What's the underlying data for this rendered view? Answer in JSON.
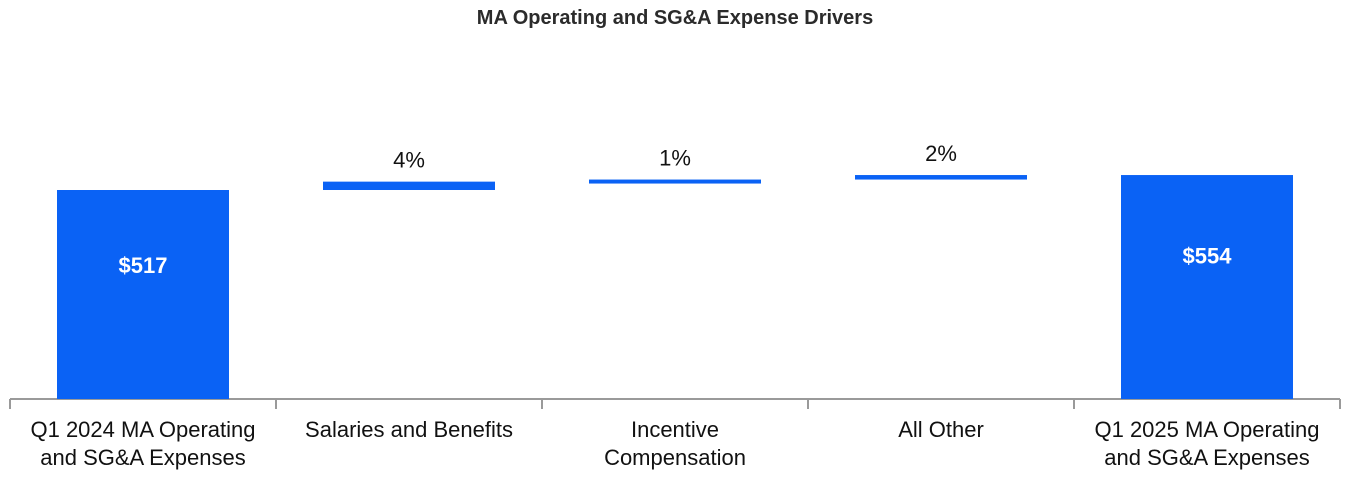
{
  "chart_data": {
    "type": "waterfall",
    "title": "MA Operating and SG&A Expense Drivers",
    "categories": [
      "Q1 2024 MA Operating\nand SG&A Expenses",
      "Salaries and Benefits",
      "Incentive\nCompensation",
      "All Other",
      "Q1 2025 MA Operating\nand SG&A Expenses"
    ],
    "bars": [
      {
        "kind": "total",
        "start": 0,
        "end": 517,
        "label": "$517"
      },
      {
        "kind": "delta",
        "start": 517,
        "end": 537.68,
        "label": "4%"
      },
      {
        "kind": "delta",
        "start": 537.68,
        "end": 542.85,
        "label": "1%"
      },
      {
        "kind": "delta",
        "start": 542.85,
        "end": 554,
        "label": "2%"
      },
      {
        "kind": "total",
        "start": 0,
        "end": 554,
        "label": "$554"
      }
    ],
    "ylim": [
      0,
      600
    ],
    "color": "#0A62F5",
    "total_label_color": "#ffffff",
    "delta_label_color": "#111111",
    "axis_color": "#9a9a9a"
  }
}
